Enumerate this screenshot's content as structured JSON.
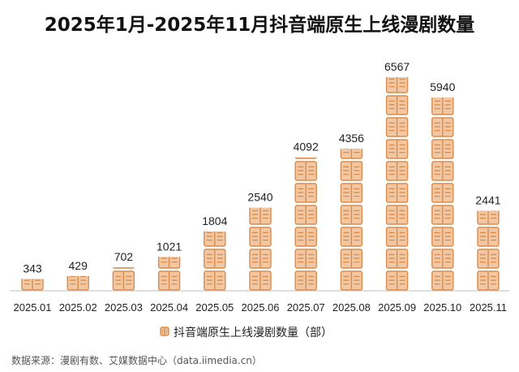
{
  "chart_data": {
    "type": "bar",
    "title": "2025年1月-2025年11月抖音端原生上线漫剧数量",
    "categories": [
      "2025.01",
      "2025.02",
      "2025.03",
      "2025.04",
      "2025.05",
      "2025.06",
      "2025.07",
      "2025.08",
      "2025.09",
      "2025.10",
      "2025.11"
    ],
    "series": [
      {
        "name": "抖音端原生上线漫剧数量（部）",
        "values": [
          343,
          429,
          702,
          1021,
          1804,
          2540,
          4092,
          4356,
          6567,
          5940,
          2441
        ]
      }
    ],
    "xlabel": "",
    "ylabel": "",
    "ylim": [
      0,
      7000
    ],
    "grid": false,
    "legend_position": "bottom",
    "mark_style": "pictograph",
    "icon": "open-book-icon",
    "colors": {
      "icon_fill": "#F2C7A3",
      "icon_stroke": "#D98B4C",
      "axis": "#BFBFBF",
      "text": "#222222"
    }
  },
  "source": "数据来源：漫剧有数、艾媒数据中心（data.iimedia.cn）"
}
